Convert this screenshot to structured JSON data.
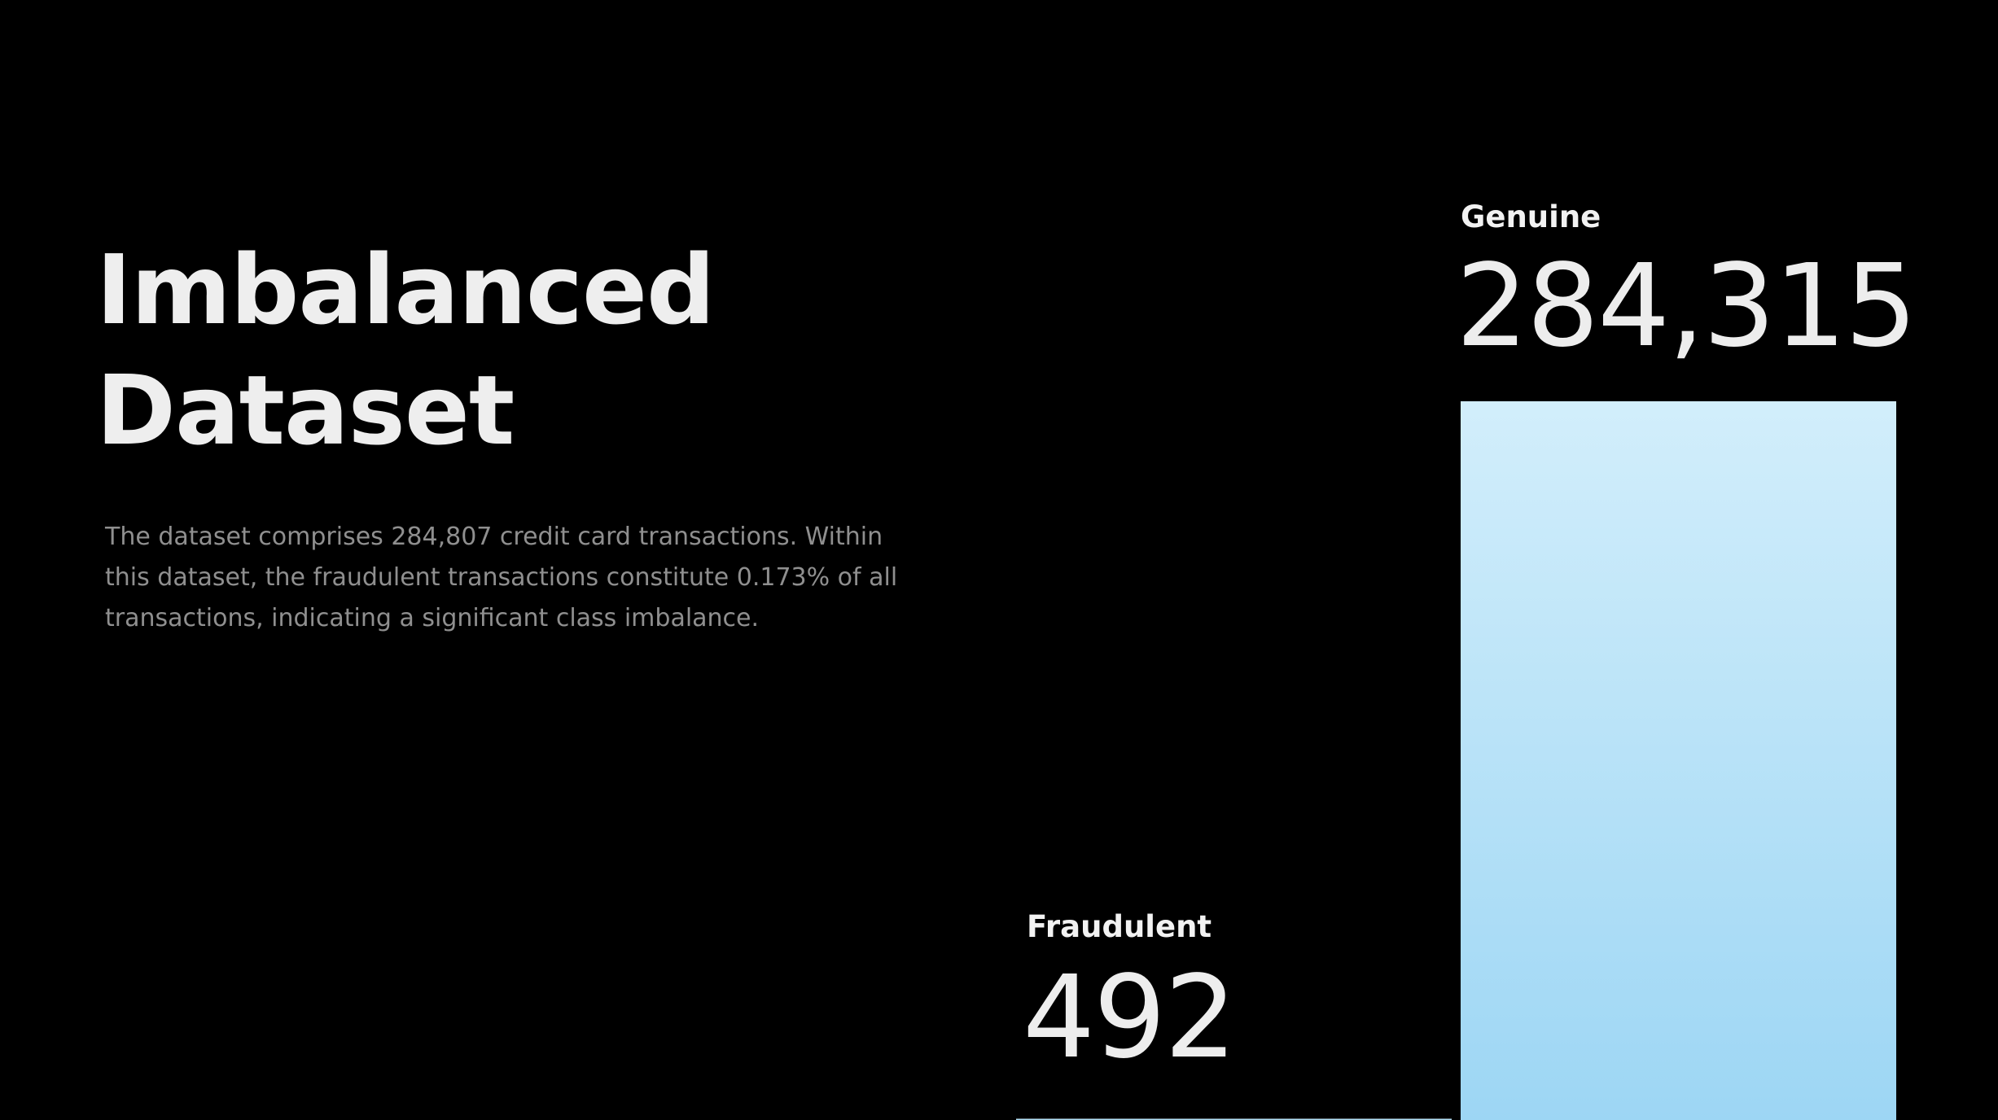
{
  "slide": {
    "title_lines": [
      "Imbalanced",
      "Dataset"
    ],
    "description_lines": [
      "The dataset comprises 284,807 credit card transactions. Within",
      "this dataset, the fraudulent transactions constitute 0.173% of all",
      "transactions, indicating a significant class imbalance."
    ]
  },
  "colors": {
    "background": "#000000",
    "bar_top": "#d2eefb",
    "bar_bottom": "#9dd6f4",
    "title": "#eeeeee",
    "description": "#8f8f8f"
  },
  "chart_data": {
    "type": "bar",
    "categories": [
      "Fraudulent",
      "Genuine"
    ],
    "values": [
      492,
      284315
    ],
    "value_labels": [
      "492",
      "284,315"
    ],
    "title": "",
    "xlabel": "",
    "ylabel": "",
    "grid": false,
    "legend": "none"
  }
}
